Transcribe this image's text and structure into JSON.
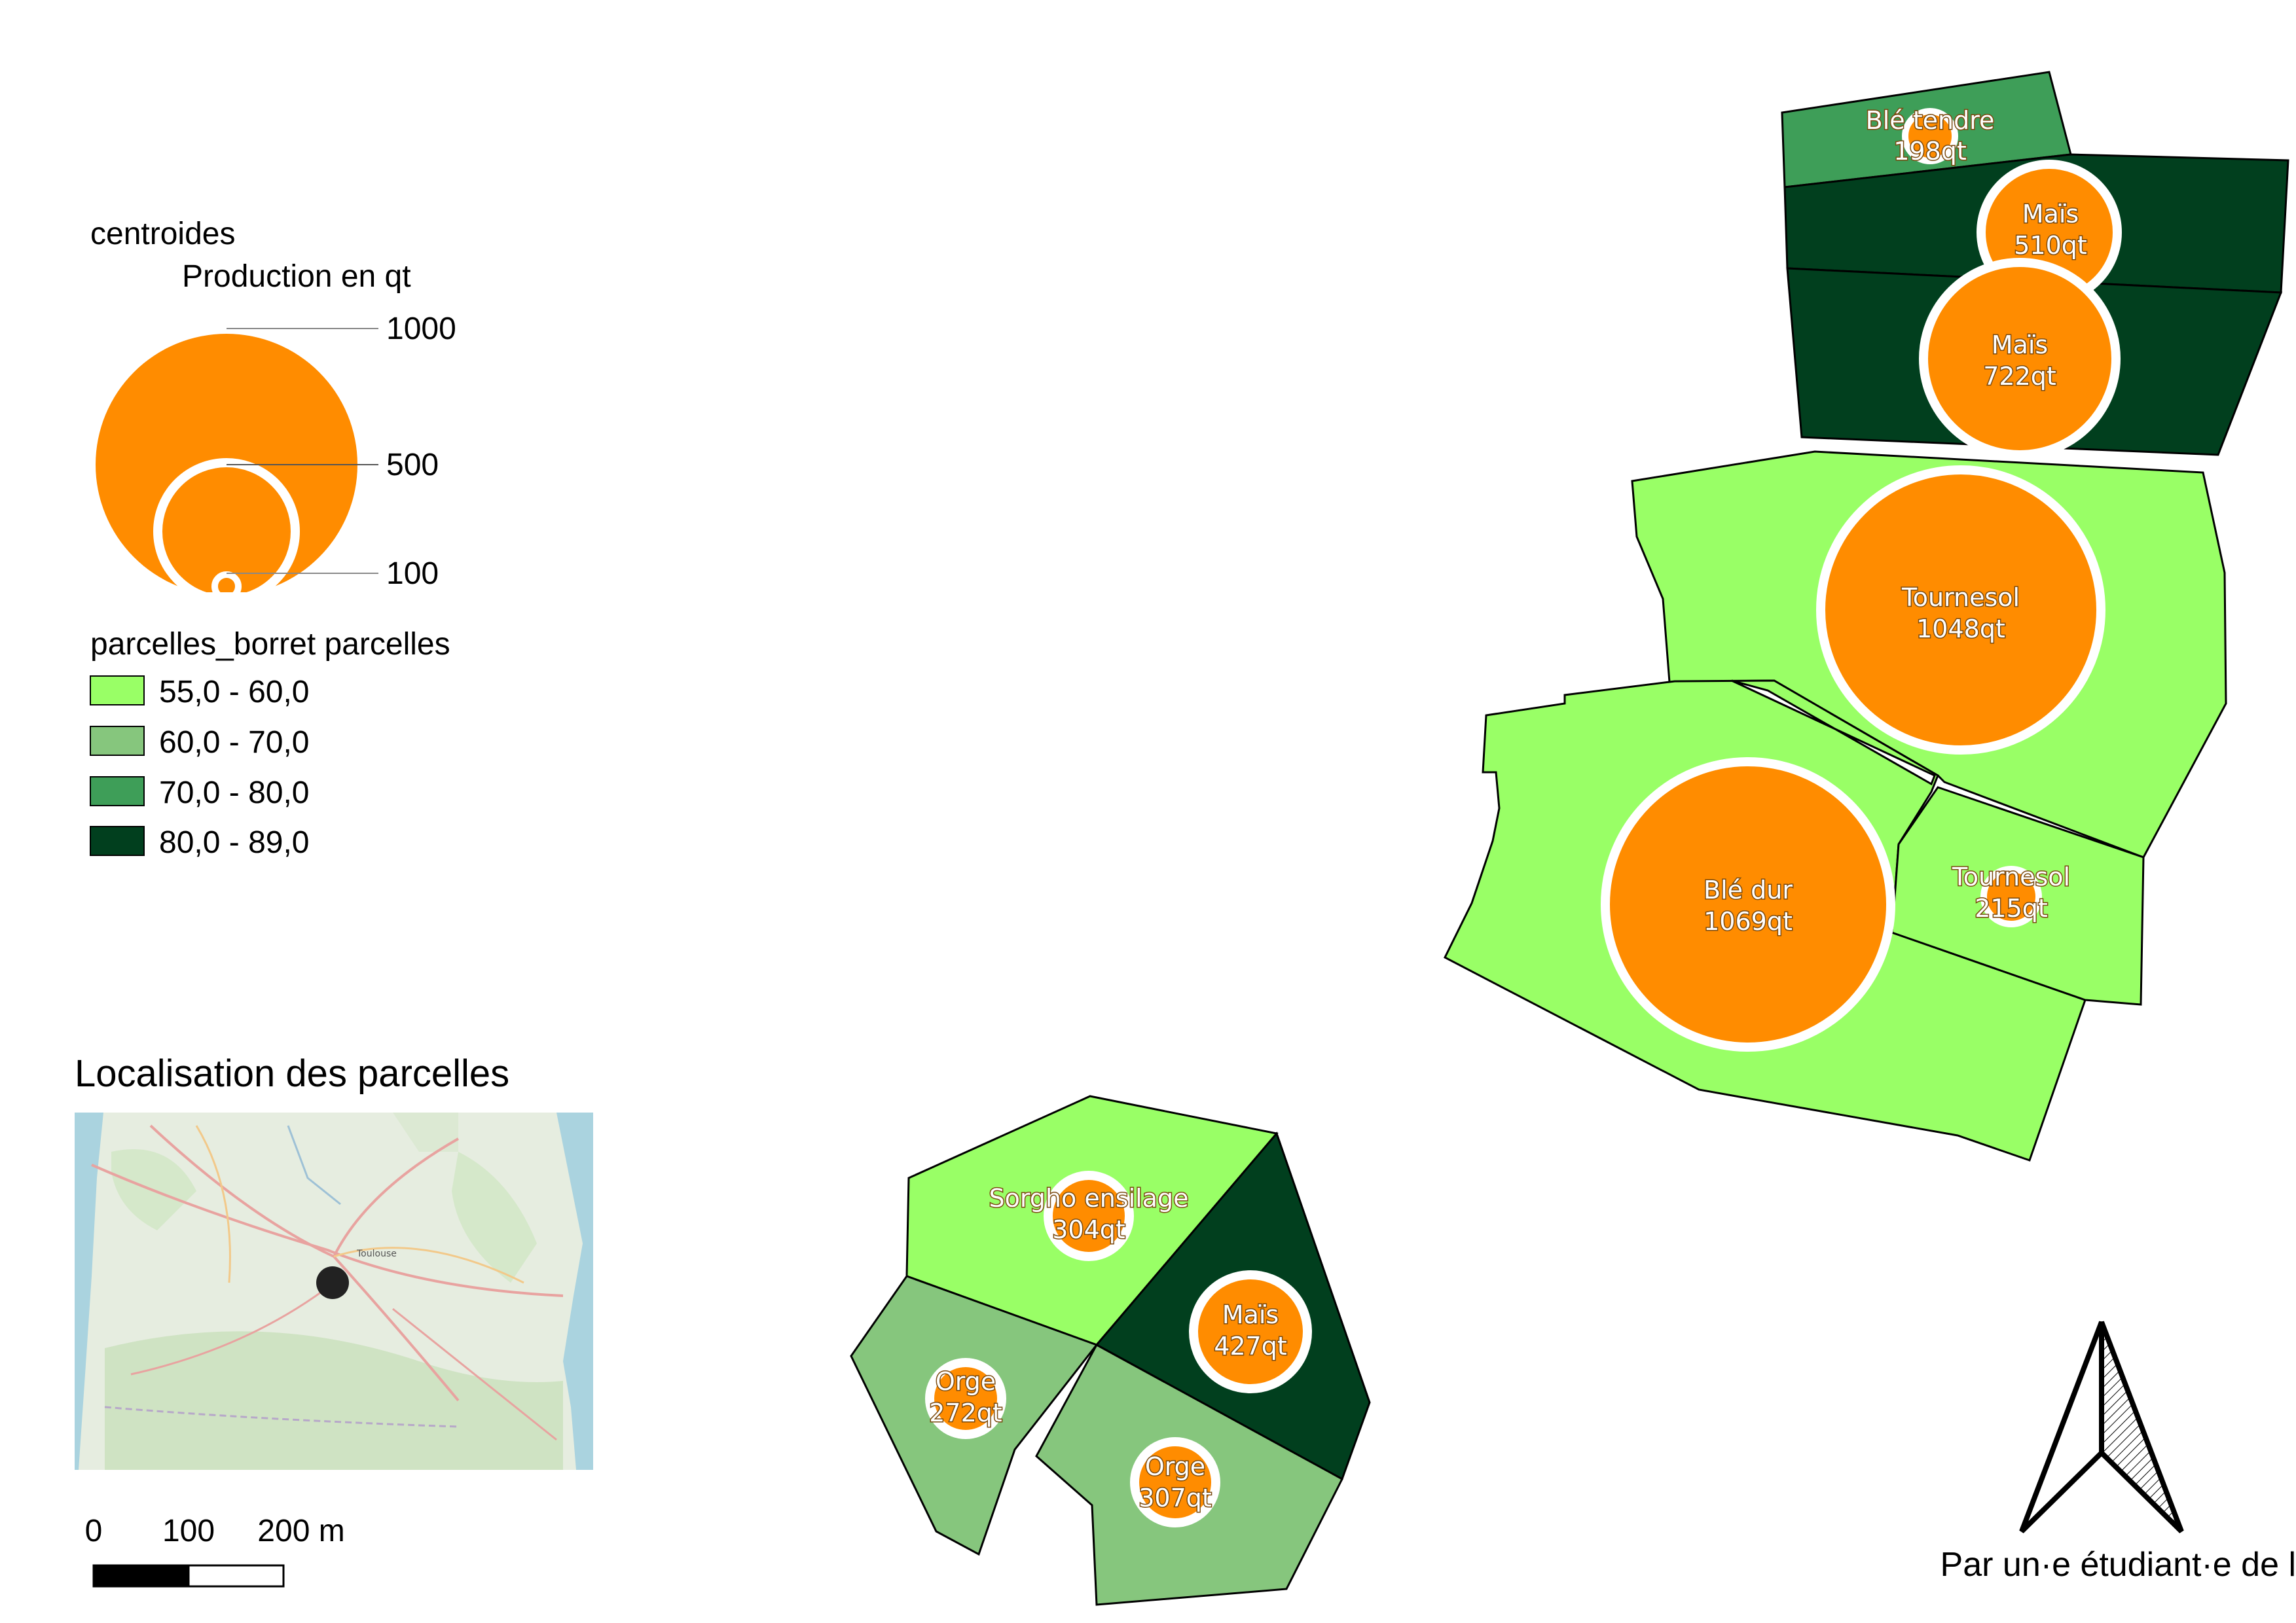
{
  "legend": {
    "layer_title": "centroides",
    "size_title": "Production en qt",
    "size_steps": [
      "1000",
      "500",
      "100"
    ],
    "class_title": "parcelles_borret parcelles",
    "classes": [
      {
        "label": "55,0 - 60,0",
        "color": "#99ff66"
      },
      {
        "label": "60,0 - 70,0",
        "color": "#86c67d"
      },
      {
        "label": "70,0 - 80,0",
        "color": "#3e9e58"
      },
      {
        "label": "80,0 - 89,0",
        "color": "#013f1e"
      }
    ]
  },
  "inset": {
    "title": "Localisation des parcelles",
    "place_labels": [
      "Toulouse"
    ]
  },
  "scalebar": {
    "ticks": [
      "0",
      "100",
      "200 m"
    ]
  },
  "credit": "Par un·e étudiant·e de l'ENSAT",
  "symbol_color": "#ff8c00",
  "parcels": [
    {
      "crop": "Blé tendre",
      "prod": "198qt"
    },
    {
      "crop": "Maïs",
      "prod": "510qt"
    },
    {
      "crop": "Maïs",
      "prod": "722qt"
    },
    {
      "crop": "Tournesol",
      "prod": "1048qt"
    },
    {
      "crop": "Blé dur",
      "prod": "1069qt"
    },
    {
      "crop": "Tournesol",
      "prod": "215qt"
    },
    {
      "crop": "Sorgho ensilage",
      "prod": "304qt"
    },
    {
      "crop": "Maïs",
      "prod": "427qt"
    },
    {
      "crop": "Orge",
      "prod": "272qt"
    },
    {
      "crop": "Orge",
      "prod": "307qt"
    }
  ]
}
